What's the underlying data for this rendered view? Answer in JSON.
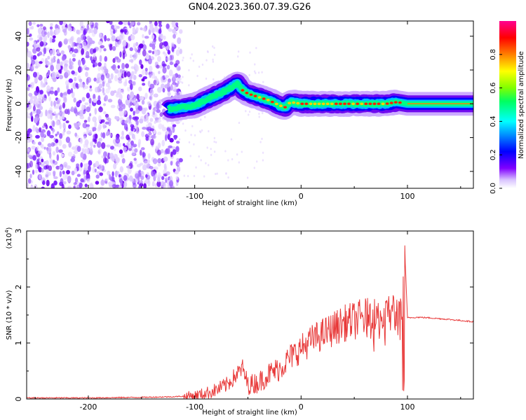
{
  "title": "GN04.2023.360.07.39.G26",
  "chart_data": [
    {
      "type": "heatmap",
      "xlabel": "Height of straight line (km)",
      "ylabel": "Frequency (Hz)",
      "xlim": [
        -258,
        162
      ],
      "ylim": [
        -50,
        49
      ],
      "xticks": [
        -200,
        -100,
        0,
        100
      ],
      "yticks": [
        -40,
        -20,
        0,
        20,
        40
      ],
      "colorbar": {
        "label": "Normalized spectral amplitude",
        "range": [
          0,
          1
        ],
        "ticks": [
          "0.0",
          "0.2",
          "0.4",
          "0.6",
          "0.8"
        ]
      },
      "ridge": {
        "x": [
          -120,
          -110,
          -100,
          -90,
          -80,
          -70,
          -60,
          -55,
          -50,
          -40,
          -30,
          -20,
          -15,
          -10,
          0,
          20,
          40,
          60,
          80,
          90,
          100,
          162
        ],
        "frequency": [
          -3,
          -2,
          -1,
          2,
          5,
          8,
          12,
          8,
          6,
          4,
          2,
          -1,
          -2,
          1,
          0,
          0,
          0,
          0,
          0,
          1,
          0,
          0
        ]
      }
    },
    {
      "type": "line",
      "xlabel": "Height of straight line (km)",
      "ylabel": "SNR (10 * v/v)",
      "yscale_label": "(x10",
      "yscale_exp": "4",
      "yscale_close": ")",
      "xlim": [
        -258,
        162
      ],
      "ylim": [
        0,
        3
      ],
      "xticks": [
        -200,
        -100,
        0,
        100
      ],
      "yticks": [
        0,
        1,
        2,
        3
      ],
      "series": [
        {
          "color": "#e83a3a",
          "x": [
            -258,
            -200,
            -150,
            -120,
            -110,
            -100,
            -90,
            -80,
            -70,
            -60,
            -55,
            -50,
            -40,
            -30,
            -20,
            -10,
            0,
            10,
            20,
            30,
            40,
            50,
            60,
            70,
            80,
            85,
            90,
            95,
            97,
            100,
            110,
            120,
            140,
            162
          ],
          "y": [
            0.02,
            0.02,
            0.03,
            0.04,
            0.05,
            0.06,
            0.1,
            0.16,
            0.25,
            0.45,
            0.55,
            0.25,
            0.3,
            0.45,
            0.55,
            0.75,
            0.9,
            1.05,
            1.15,
            1.25,
            1.35,
            1.4,
            1.45,
            1.4,
            1.5,
            1.55,
            1.5,
            1.55,
            2.9,
            1.45,
            1.46,
            1.45,
            1.42,
            1.38
          ]
        }
      ]
    }
  ]
}
